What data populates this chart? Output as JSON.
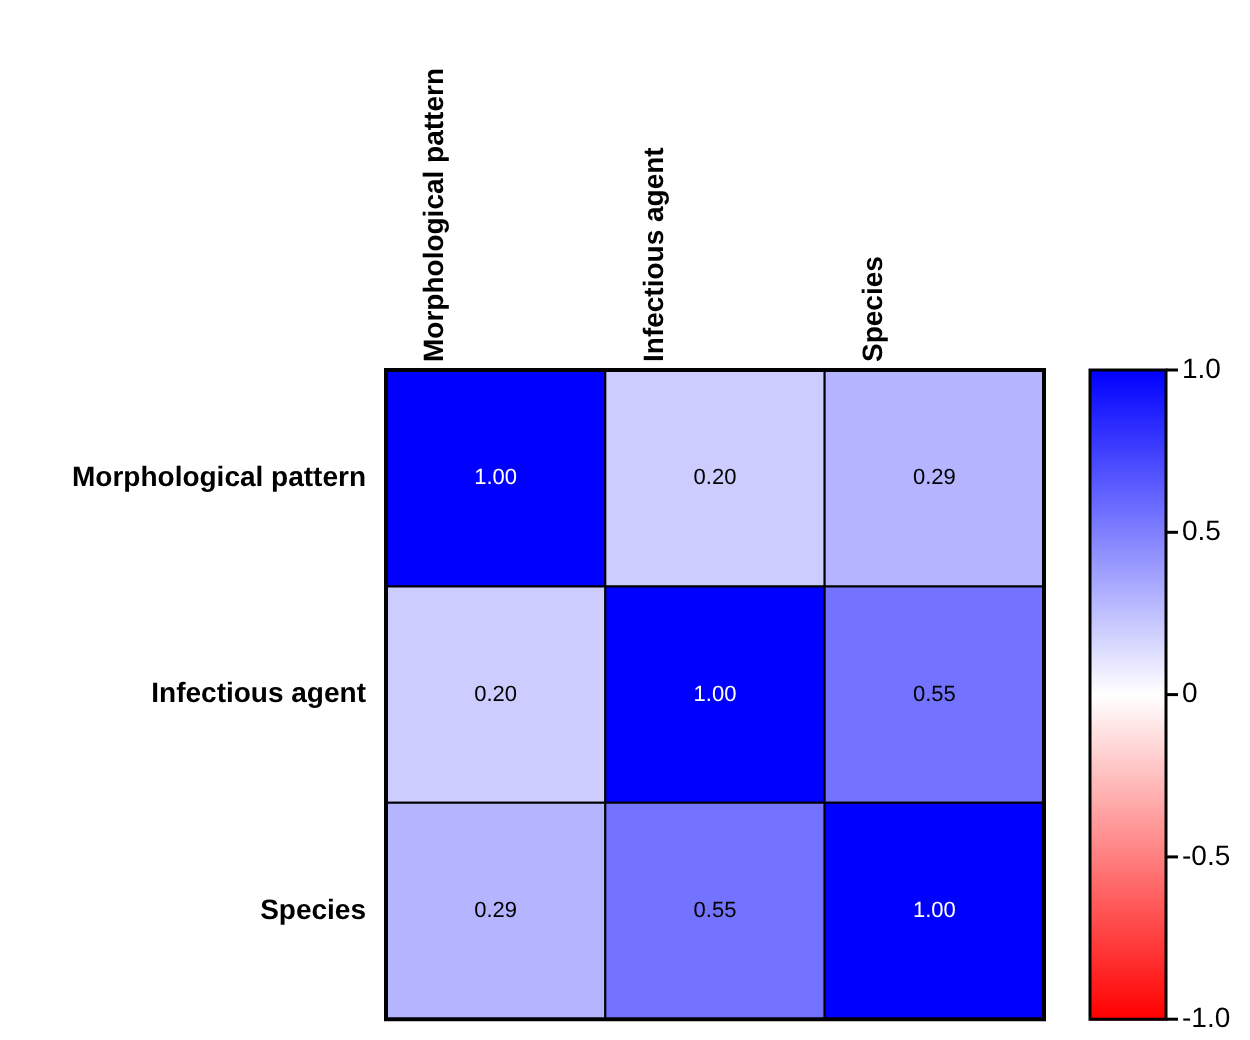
{
  "chart_data": {
    "type": "heatmap",
    "categories": [
      "Morphological pattern",
      "Infectious agent",
      "Species"
    ],
    "y_categories": [
      "Morphological pattern",
      "Infectious agent",
      "Species"
    ],
    "cells": [
      [
        1.0,
        0.2,
        0.29
      ],
      [
        0.2,
        1.0,
        0.55
      ],
      [
        0.29,
        0.55,
        1.0
      ]
    ],
    "cell_labels": [
      [
        "1.00",
        "0.20",
        "0.29"
      ],
      [
        "0.20",
        "1.00",
        "0.55"
      ],
      [
        "0.29",
        "0.55",
        "1.00"
      ]
    ],
    "clim": [
      -1,
      1
    ],
    "cticks": [
      {
        "value": 1,
        "label": "1.0"
      },
      {
        "value": 0.5,
        "label": "0.5"
      },
      0,
      {
        "value": -0.5,
        "label": "-0.5"
      },
      {
        "value": -1,
        "label": "-1.0"
      }
    ]
  }
}
